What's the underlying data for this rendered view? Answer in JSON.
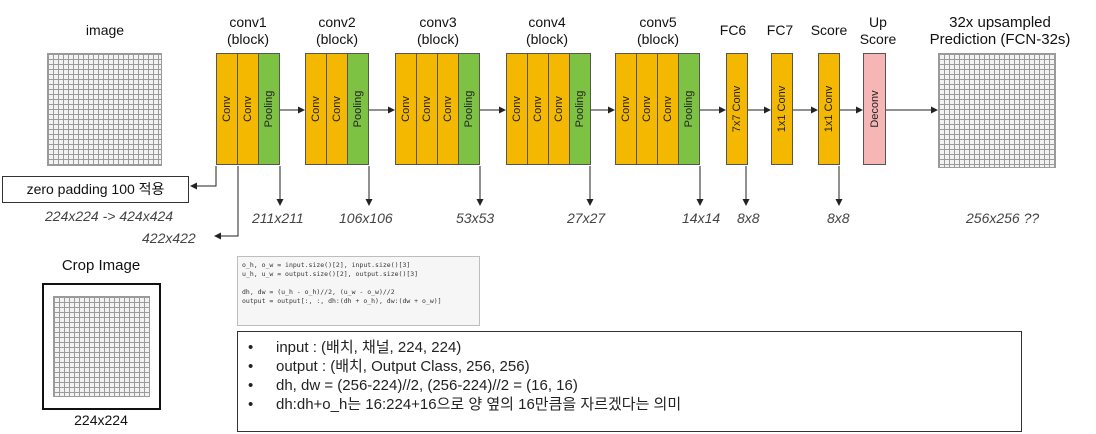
{
  "header": {
    "image": "image",
    "conv1": "conv1\n(block)",
    "conv2": "conv2\n(block)",
    "conv3": "conv3\n(block)",
    "conv4": "conv4\n(block)",
    "conv5": "conv5\n(block)",
    "fc6": "FC6",
    "fc7": "FC7",
    "score": "Score",
    "upscore": "Up\nScore",
    "prediction": "32x upsampled\nPrediction (FCN-32s)"
  },
  "layers": {
    "conv": "Conv",
    "pooling": "Pooling",
    "fc6": "7x7 Conv",
    "fc7": "1x1 Conv",
    "score": "1x1 Conv",
    "deconv": "Deconv"
  },
  "colors": {
    "conv": "#f5b800",
    "pooling": "#7dc242",
    "deconv": "#f7b6b6"
  },
  "padding_note": "zero padding 100 적용",
  "dims": {
    "pad": "224x224 -> 424x424",
    "conv1_out": "422x422",
    "d1": "211x211",
    "d2": "106x106",
    "d3": "53x53",
    "d4": "27x27",
    "d5": "14x14",
    "d6": "8x8",
    "d7": "8x8",
    "d8": "256x256 ??"
  },
  "crop": {
    "title": "Crop Image",
    "size": "224x224"
  },
  "code": "o_h, o_w = input.size()[2], input.size()[3]\nu_h, u_w = output.size()[2], output.size()[3]\n\ndh, dw = (u_h - o_h)//2, (u_w - o_w)//2\noutput = output[:, :, dh:(dh + o_h), dw:(dw + o_w)]",
  "bullets": [
    "input : (배치, 채널, 224, 224)",
    "output : (배치, Output Class, 256, 256)",
    "dh, dw = (256-224)//2, (256-224)//2 = (16, 16)",
    "dh:dh+o_h는 16:224+16으로 양 옆의 16만큼을 자르겠다는 의미"
  ]
}
